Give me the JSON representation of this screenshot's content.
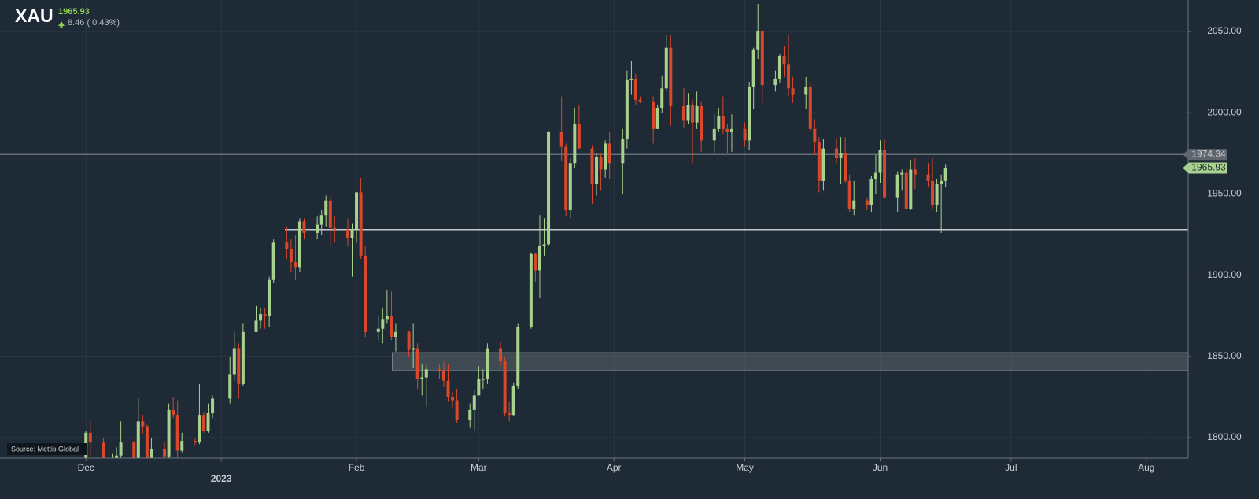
{
  "chart_data": {
    "type": "candlestick",
    "title": "XAU",
    "last_price": 1965.93,
    "change_label": "8.46 ( 0.43%)",
    "source": "Source: Mettis Global",
    "reference_line": 1974.34,
    "support_level": 1928,
    "support_from": 45.6,
    "zone": {
      "low": 1841.2,
      "high": 1852.3,
      "from": 70.2
    },
    "up_color": "#a9d18e",
    "down_color": "#d9482b",
    "grid": true,
    "x": [
      0,
      1,
      4,
      5,
      6,
      7,
      8,
      11,
      12,
      13,
      14,
      15,
      18,
      19,
      20,
      21,
      22,
      25,
      26,
      27,
      28,
      29,
      33,
      34,
      35,
      36,
      39,
      40,
      41,
      42,
      43,
      46,
      47,
      48,
      49,
      50,
      53,
      54,
      55,
      56,
      57,
      60,
      61,
      62,
      63,
      64,
      67,
      68,
      69,
      70,
      71,
      74,
      75,
      76,
      77,
      78,
      81,
      82,
      83,
      84,
      85,
      88,
      89,
      90,
      91,
      92,
      95,
      96,
      97,
      98,
      99,
      102,
      103,
      104,
      105,
      106,
      109,
      110,
      111,
      112,
      113,
      116,
      117,
      118,
      119,
      120,
      123,
      124,
      125,
      126,
      127,
      130,
      131,
      132,
      133,
      134,
      137,
      138,
      139,
      140,
      141,
      144,
      145,
      146,
      147,
      148,
      151,
      152,
      153,
      154,
      155,
      158,
      159,
      160,
      161,
      162,
      165,
      166,
      167,
      168,
      169,
      172,
      173,
      174,
      175,
      176,
      179,
      180,
      181,
      182,
      183,
      186,
      187,
      188,
      189,
      190,
      193,
      194,
      195,
      196,
      197
    ],
    "open": [
      1768,
      1803,
      1797,
      1769,
      1772,
      1787,
      1789,
      1797,
      1781,
      1810,
      1807,
      1777,
      1793,
      1788,
      1817,
      1814,
      1792,
      1798,
      1797,
      1814,
      1804,
      1815,
      1824,
      1839,
      1855,
      1833,
      1865,
      1872,
      1876,
      1875,
      1897,
      1920,
      1916,
      1908,
      1905,
      1933,
      1926,
      1931,
      1937,
      1946,
      1929,
      1928,
      1923,
      1928,
      1951,
      1912,
      1865,
      1867,
      1873,
      1875,
      1862,
      1865,
      1854,
      1855,
      1836,
      1837,
      1842,
      1841,
      1835,
      1825,
      1823,
      1811,
      1817,
      1826,
      1836,
      1836,
      1855,
      1847,
      1815,
      1814,
      1832,
      1868,
      1913,
      1903,
      1918,
      1919,
      1988,
      1979,
      1940,
      1969,
      1993,
      1978,
      1956,
      1973,
      1965,
      1981,
      1969,
      1984,
      2020,
      2021,
      2008,
      2007,
      1990,
      2003,
      2015,
      2040,
      2004,
      1995,
      2005,
      1994,
      2004,
      1983,
      1990,
      1998,
      1990,
      1988,
      1990,
      1983,
      2016,
      2039,
      2050,
      2017,
      2021,
      2035,
      2030,
      2015,
      2011,
      2016,
      1990,
      1982,
      1958,
      1978,
      1972,
      1975,
      1958,
      1941,
      1946,
      1943,
      1959,
      1963,
      1977,
      1948,
      1962,
      1963,
      1941,
      1965,
      1962,
      1958,
      1943,
      1956,
      1958
    ],
    "high": [
      1804,
      1810,
      1800,
      1786,
      1790,
      1794,
      1810,
      1798,
      1824,
      1814,
      1808,
      1800,
      1797,
      1821,
      1825,
      1823,
      1803,
      1800,
      1833,
      1816,
      1821,
      1826,
      1850,
      1865,
      1858,
      1870,
      1881,
      1880,
      1880,
      1899,
      1922,
      1930,
      1922,
      1925,
      1935,
      1935,
      1936,
      1940,
      1949,
      1949,
      1936,
      1935,
      1932,
      1951,
      1960,
      1918,
      1875,
      1880,
      1891,
      1890,
      1870,
      1866,
      1870,
      1858,
      1845,
      1845,
      1845,
      1847,
      1845,
      1828,
      1830,
      1821,
      1829,
      1844,
      1842,
      1858,
      1859,
      1850,
      1822,
      1834,
      1870,
      1914,
      1914,
      1937,
      1935,
      1989,
      2010,
      1981,
      1972,
      2003,
      2005,
      1980,
      1975,
      1975,
      1983,
      1988,
      1990,
      2026,
      2032,
      2024,
      2010,
      2010,
      2005,
      2023,
      2048,
      2048,
      2015,
      2012,
      2008,
      2013,
      2007,
      1999,
      2003,
      2010,
      1993,
      1999,
      1994,
      2019,
      2040,
      2067,
      2051,
      2026,
      2036,
      2041,
      2048,
      2022,
      2022,
      2019,
      1996,
      1985,
      1984,
      1984,
      1985,
      1985,
      1962,
      1958,
      1948,
      1961,
      1974,
      1983,
      1984,
      1964,
      1965,
      1966,
      1971,
      1972,
      1969,
      1972,
      1959,
      1962,
      1968
    ],
    "low": [
      1767,
      1787,
      1765,
      1768,
      1770,
      1783,
      1786,
      1775,
      1778,
      1802,
      1773,
      1775,
      1781,
      1784,
      1812,
      1785,
      1791,
      1795,
      1796,
      1803,
      1803,
      1812,
      1821,
      1835,
      1824,
      1832,
      1865,
      1867,
      1867,
      1868,
      1895,
      1910,
      1902,
      1897,
      1902,
      1922,
      1922,
      1925,
      1930,
      1918,
      1920,
      1918,
      1899,
      1920,
      1910,
      1862,
      1860,
      1858,
      1870,
      1860,
      1853,
      1850,
      1843,
      1830,
      1826,
      1819,
      1836,
      1831,
      1822,
      1818,
      1809,
      1806,
      1804,
      1826,
      1830,
      1833,
      1844,
      1813,
      1810,
      1813,
      1830,
      1867,
      1896,
      1886,
      1912,
      1918,
      1970,
      1936,
      1935,
      1966,
      1978,
      1944,
      1949,
      1952,
      1960,
      1959,
      1950,
      1978,
      2011,
      2005,
      2006,
      1981,
      1990,
      2000,
      2013,
      1992,
      1991,
      1993,
      1969,
      1990,
      1976,
      1975,
      1988,
      1987,
      1975,
      1976,
      1979,
      1977,
      2002,
      2033,
      2006,
      2013,
      2018,
      2022,
      2010,
      2006,
      2002,
      1988,
      1974,
      1951,
      1952,
      1969,
      1956,
      1957,
      1939,
      1937,
      1940,
      1939,
      1950,
      1957,
      1947,
      1939,
      1952,
      1941,
      1940,
      1953,
      1954,
      1941,
      1939,
      1926,
      1954
    ],
    "close": [
      1803,
      1797,
      1769,
      1772,
      1787,
      1789,
      1797,
      1781,
      1810,
      1807,
      1777,
      1793,
      1788,
      1817,
      1814,
      1792,
      1798,
      1797,
      1814,
      1804,
      1815,
      1824,
      1839,
      1855,
      1833,
      1865,
      1872,
      1876,
      1875,
      1897,
      1920,
      1916,
      1908,
      1905,
      1933,
      1926,
      1931,
      1937,
      1946,
      1929,
      1928,
      1923,
      1928,
      1951,
      1912,
      1865,
      1867,
      1873,
      1875,
      1862,
      1865,
      1854,
      1855,
      1836,
      1837,
      1842,
      1841,
      1835,
      1825,
      1823,
      1811,
      1817,
      1826,
      1836,
      1836,
      1855,
      1847,
      1815,
      1814,
      1832,
      1868,
      1913,
      1903,
      1918,
      1919,
      1988,
      1979,
      1940,
      1969,
      1993,
      1978,
      1956,
      1973,
      1965,
      1981,
      1969,
      1984,
      2020,
      2021,
      2008,
      2007,
      1990,
      2003,
      2015,
      2040,
      2004,
      1995,
      2005,
      1994,
      2004,
      1983,
      1990,
      1998,
      1990,
      1988,
      1990,
      1983,
      2016,
      2039,
      2050,
      2017,
      2021,
      2035,
      2030,
      2015,
      2011,
      2016,
      1990,
      1982,
      1958,
      1978,
      1972,
      1975,
      1958,
      1941,
      1946,
      1943,
      1959,
      1963,
      1977,
      1948,
      1962,
      1963,
      1941,
      1965,
      1962,
      1958,
      1943,
      1956,
      1958,
      1965.93
    ],
    "xlim": [
      -19.7,
      252.6
    ],
    "xticks": [
      {
        "value": 0,
        "label": "Dec"
      },
      {
        "value": 31,
        "label": "2023"
      },
      {
        "value": 62,
        "label": "Feb"
      },
      {
        "value": 90,
        "label": "Mar"
      },
      {
        "value": 121,
        "label": "Apr"
      },
      {
        "value": 151,
        "label": "May"
      },
      {
        "value": 182,
        "label": "Jun"
      },
      {
        "value": 212,
        "label": "Jul"
      },
      {
        "value": 243,
        "label": "Aug"
      }
    ],
    "ylim": [
      1787.4,
      2069.4
    ],
    "yticks": [
      {
        "value": 1800,
        "label": "1800.00"
      },
      {
        "value": 1850,
        "label": "1850.00"
      },
      {
        "value": 1900,
        "label": "1900.00"
      },
      {
        "value": 1950,
        "label": "1950.00"
      },
      {
        "value": 2000,
        "label": "2000.00"
      },
      {
        "value": 2050,
        "label": "2050.00"
      }
    ]
  }
}
